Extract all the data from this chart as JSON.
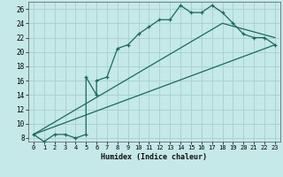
{
  "title": "",
  "xlabel": "Humidex (Indice chaleur)",
  "ylabel": "",
  "background_color": "#c5e8e8",
  "grid_color": "#a8cece",
  "line_color": "#1a6a5a",
  "xlim": [
    -0.5,
    23.5
  ],
  "ylim": [
    7.5,
    27.0
  ],
  "xticks": [
    0,
    1,
    2,
    3,
    4,
    5,
    6,
    7,
    8,
    9,
    10,
    11,
    12,
    13,
    14,
    15,
    16,
    17,
    18,
    19,
    20,
    21,
    22,
    23
  ],
  "yticks": [
    8,
    10,
    12,
    14,
    16,
    18,
    20,
    22,
    24,
    26
  ],
  "main_x": [
    0,
    1,
    2,
    3,
    4,
    5,
    5,
    6,
    6,
    7,
    8,
    9,
    10,
    11,
    12,
    13,
    14,
    15,
    16,
    17,
    18,
    19,
    20,
    21,
    22,
    23
  ],
  "main_y": [
    8.5,
    7.5,
    8.5,
    8.5,
    8.0,
    8.5,
    16.5,
    14.0,
    16.0,
    16.5,
    20.5,
    21.0,
    22.5,
    23.5,
    24.5,
    24.5,
    26.5,
    25.5,
    25.5,
    26.5,
    25.5,
    24.0,
    22.5,
    22.0,
    22.0,
    21.0
  ],
  "line2_x": [
    0,
    18,
    23
  ],
  "line2_y": [
    8.5,
    24.0,
    22.0
  ],
  "line3_x": [
    0,
    23
  ],
  "line3_y": [
    8.5,
    21.0
  ]
}
